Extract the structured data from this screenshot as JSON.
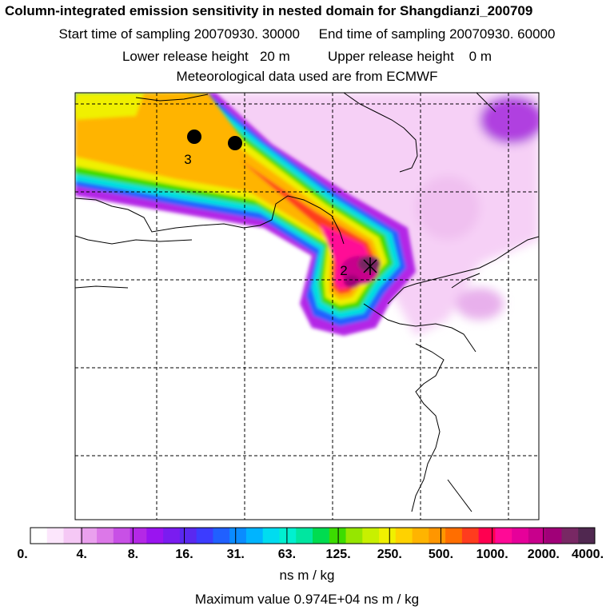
{
  "header": {
    "title": "Column-integrated emission sensitivity in nested domain for Shangdianzi_200709",
    "sampling": "Start time of sampling 20070930. 30000     End time of sampling 20070930. 60000",
    "release": "Lower release height   20 m          Upper release height    0 m",
    "met": "Meteorological data used are from ECMWF"
  },
  "map": {
    "markers": [
      {
        "label": "3",
        "kind": "dot"
      },
      {
        "label": "",
        "kind": "dot"
      },
      {
        "label": "2",
        "kind": "station-cross"
      }
    ]
  },
  "colorbar": {
    "tick_labels": [
      "0.",
      "4.",
      "8.",
      "16.",
      "31.",
      "63.",
      "125.",
      "250.",
      "500.",
      "1000.",
      "2000.",
      "4000."
    ],
    "unit": "ns m / kg",
    "colors": [
      "#ffffff",
      "#fce6fc",
      "#f5c8f5",
      "#eaa0ee",
      "#dc78e8",
      "#c850e6",
      "#b428e6",
      "#9a14f0",
      "#7a1cf0",
      "#5a28f0",
      "#3c3cff",
      "#2060ff",
      "#0a8cff",
      "#00b4ff",
      "#00dcf0",
      "#00f0d0",
      "#00e6a0",
      "#00dc50",
      "#3cdc00",
      "#96e600",
      "#c8f000",
      "#f0f000",
      "#ffd200",
      "#ffb400",
      "#ff9600",
      "#ff6e00",
      "#ff3c1e",
      "#ff0050",
      "#ff0a96",
      "#e6009a",
      "#c8008c",
      "#a00078",
      "#782864",
      "#502850"
    ]
  },
  "footer": {
    "maximum": "Maximum value  0.974E+04 ns m / kg"
  }
}
